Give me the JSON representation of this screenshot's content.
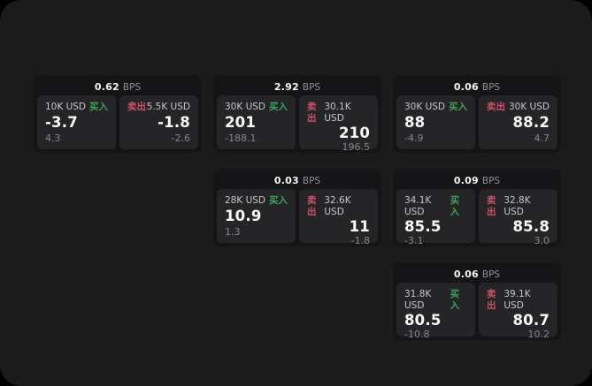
{
  "page": {
    "background": "#000000",
    "panel_color": "#1b1b1c"
  },
  "labels": {
    "bps": "BPS",
    "buy": "买入",
    "sell": "卖出"
  },
  "colors": {
    "buy": "#3fa35a",
    "sell": "#ce5168"
  },
  "cards": [
    {
      "row": 1,
      "col": 1,
      "bps": "0.62",
      "buy": {
        "notional": "10K USD",
        "value": "-3.7",
        "sub": "4.3"
      },
      "sell": {
        "notional": "5.5K USD",
        "value": "-1.8",
        "sub": "-2.6"
      }
    },
    {
      "row": 1,
      "col": 2,
      "bps": "2.92",
      "buy": {
        "notional": "30K USD",
        "value": "201",
        "sub": "-188.1"
      },
      "sell": {
        "notional": "30.1K USD",
        "value": "210",
        "sub": "196.5"
      }
    },
    {
      "row": 1,
      "col": 3,
      "bps": "0.06",
      "buy": {
        "notional": "30K USD",
        "value": "88",
        "sub": "-4.9"
      },
      "sell": {
        "notional": "30K USD",
        "value": "88.2",
        "sub": "4.7"
      }
    },
    {
      "row": 2,
      "col": 2,
      "bps": "0.03",
      "buy": {
        "notional": "28K USD",
        "value": "10.9",
        "sub": "1.3"
      },
      "sell": {
        "notional": "32.6K USD",
        "value": "11",
        "sub": "-1.8"
      }
    },
    {
      "row": 2,
      "col": 3,
      "bps": "0.09",
      "buy": {
        "notional": "34.1K USD",
        "value": "85.5",
        "sub": "-3.1"
      },
      "sell": {
        "notional": "32.8K USD",
        "value": "85.8",
        "sub": "3.0"
      }
    },
    {
      "row": 3,
      "col": 3,
      "bps": "0.06",
      "buy": {
        "notional": "31.8K USD",
        "value": "80.5",
        "sub": "-10.8"
      },
      "sell": {
        "notional": "39.1K USD",
        "value": "80.7",
        "sub": "10.2"
      }
    }
  ]
}
